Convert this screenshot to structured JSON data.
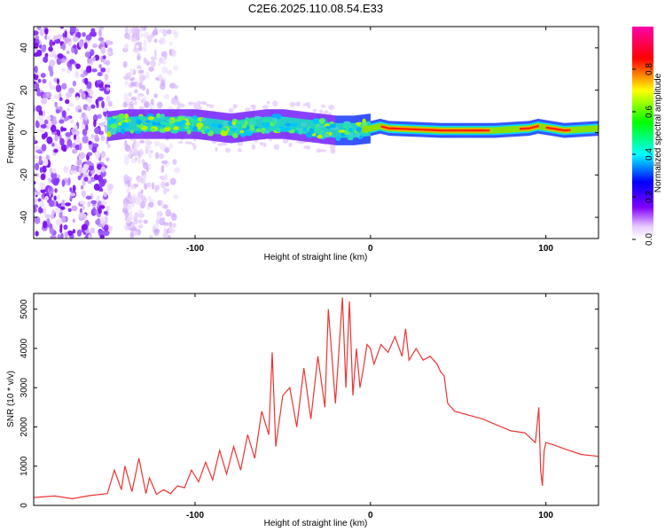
{
  "title": "C2E6.2025.110.08.54.E33",
  "colors": {
    "snr_line": "#ee3333",
    "background": "#ffffff"
  },
  "chart_data": [
    {
      "type": "heatmap",
      "title": "",
      "xlabel": "Height of straight line (km)",
      "ylabel": "Frequency (Hz)",
      "xlim": [
        -192,
        130
      ],
      "ylim": [
        -50,
        50
      ],
      "xticks": [
        -100,
        0,
        100
      ],
      "yticks": [
        -40,
        -20,
        0,
        20,
        40
      ],
      "colorbar": {
        "label": "Normalized spectral amplitude",
        "range": [
          0,
          1
        ],
        "ticks": [
          0.0,
          0.2,
          0.4,
          0.6,
          0.8
        ]
      },
      "ridge": {
        "x": [
          -150,
          -140,
          -120,
          -100,
          -80,
          -60,
          -50,
          -40,
          -30,
          -20,
          -10,
          0,
          5,
          10,
          40,
          70,
          90,
          95,
          110,
          130
        ],
        "freq": [
          3,
          4,
          4,
          4,
          2,
          4,
          4,
          3,
          2,
          1,
          1,
          2,
          3,
          2,
          1,
          1,
          2,
          3,
          1,
          2
        ]
      },
      "noise_region": {
        "x": [
          -192,
          -110
        ]
      }
    },
    {
      "type": "line",
      "title": "",
      "xlabel": "Height of straight line (km)",
      "ylabel": "SNR (10 * v/v)",
      "xlim": [
        -192,
        130
      ],
      "ylim": [
        0,
        5400
      ],
      "xticks": [
        -100,
        0,
        100
      ],
      "yticks": [
        0,
        1000,
        2000,
        3000,
        4000,
        5000
      ],
      "series": [
        {
          "x": [
            -192,
            -180,
            -170,
            -160,
            -150,
            -146,
            -142,
            -140,
            -136,
            -132,
            -128,
            -126,
            -122,
            -118,
            -114,
            -110,
            -106,
            -102,
            -98,
            -94,
            -90,
            -86,
            -82,
            -78,
            -74,
            -70,
            -66,
            -62,
            -58,
            -56,
            -54,
            -50,
            -46,
            -42,
            -38,
            -34,
            -30,
            -26,
            -24,
            -20,
            -16,
            -14,
            -12,
            -10,
            -8,
            -6,
            -4,
            -2,
            0,
            2,
            6,
            10,
            14,
            18,
            20,
            22,
            26,
            30,
            34,
            38,
            40,
            42,
            44,
            48,
            56,
            64,
            72,
            80,
            88,
            94,
            96,
            97,
            98,
            99,
            100,
            104,
            110,
            120,
            130
          ],
          "y": [
            200,
            240,
            170,
            250,
            300,
            900,
            400,
            1000,
            350,
            1200,
            300,
            700,
            280,
            400,
            300,
            500,
            450,
            900,
            600,
            1100,
            650,
            1400,
            800,
            1500,
            900,
            1800,
            1200,
            2400,
            1800,
            3900,
            1500,
            2800,
            3000,
            2000,
            3500,
            2200,
            3800,
            2500,
            5000,
            2600,
            5300,
            3000,
            5200,
            2800,
            4000,
            3000,
            3500,
            4100,
            4000,
            3600,
            4100,
            3900,
            4300,
            3800,
            4500,
            3700,
            4000,
            3700,
            3800,
            3600,
            3400,
            3300,
            2600,
            2400,
            2300,
            2200,
            2050,
            1900,
            1850,
            1600,
            2500,
            900,
            500,
            1400,
            1600,
            1550,
            1450,
            1300,
            1250
          ]
        }
      ]
    }
  ]
}
